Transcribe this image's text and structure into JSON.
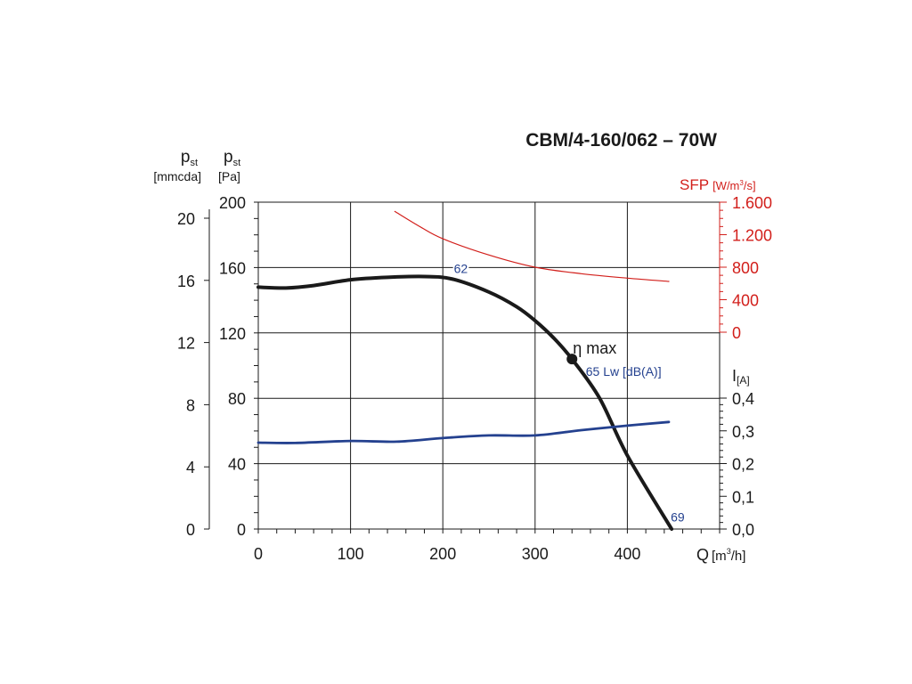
{
  "chart_data": {
    "type": "line",
    "title": "CBM/4-160/062 – 70W",
    "xlabel": "Q [m³/h]",
    "xlabel_main": "Q",
    "xlabel_unit": "[m",
    "xlabel_sup": "3",
    "xlabel_unit_end": "/h]",
    "xlim": [
      0,
      500
    ],
    "xticks": [
      0,
      100,
      200,
      300,
      400
    ],
    "y_left": {
      "label_main": "p",
      "label_sub": "st",
      "unit": "[Pa]",
      "ylim": [
        0,
        200
      ],
      "ticks": [
        0,
        40,
        80,
        120,
        160,
        200
      ]
    },
    "y_left2": {
      "label_main": "p",
      "label_sub": "st",
      "unit": "[mmcda]",
      "ylim": [
        0,
        20.4
      ],
      "ticks": [
        0,
        4,
        8,
        12,
        16,
        20
      ]
    },
    "y_right_sfp": {
      "label": "SFP",
      "unit": "[W/m",
      "unit_sup": "3",
      "unit_end": "/s]",
      "ylim": [
        0,
        1600
      ],
      "ticks": [
        "0",
        "400",
        "800",
        "1.200",
        "1.600"
      ],
      "tick_values": [
        0,
        400,
        800,
        1200,
        1600
      ],
      "color": "#d21f1b"
    },
    "y_right_current": {
      "label_main": "I",
      "label_sub": "[A]",
      "ylim": [
        0,
        0.4
      ],
      "ticks": [
        "0,0",
        "0,1",
        "0,2",
        "0,3",
        "0,4"
      ],
      "tick_values": [
        0,
        0.1,
        0.2,
        0.3,
        0.4
      ]
    },
    "series": [
      {
        "name": "pressure",
        "axis": "pa",
        "color": "#1a1a1a",
        "x": [
          0,
          30,
          60,
          100,
          140,
          180,
          210,
          250,
          280,
          300,
          320,
          340,
          370,
          400,
          448
        ],
        "y": [
          148,
          147.5,
          149,
          152.5,
          154,
          154.5,
          153,
          145,
          136,
          127.5,
          117,
          104,
          80,
          45,
          0
        ]
      },
      {
        "name": "SFP",
        "axis": "sfp",
        "color": "#d21f1b",
        "x": [
          148,
          175,
          200,
          250,
          300,
          350,
          400,
          445
        ],
        "y": [
          1486,
          1300,
          1150,
          950,
          800,
          720,
          665,
          625
        ]
      },
      {
        "name": "current",
        "axis": "a",
        "color": "#24418f",
        "x": [
          0,
          40,
          100,
          150,
          200,
          250,
          300,
          350,
          400,
          445
        ],
        "y": [
          0.264,
          0.263,
          0.269,
          0.267,
          0.278,
          0.286,
          0.286,
          0.302,
          0.316,
          0.327
        ]
      }
    ],
    "annotations": [
      {
        "text": "62",
        "x": 212,
        "y": 160,
        "color": "#24418f"
      },
      {
        "text": "65 Lw [dB(A)]",
        "x": 355,
        "y": 97,
        "color": "#24418f"
      },
      {
        "text": "69",
        "x": 447,
        "y": 8,
        "color": "#24418f"
      },
      {
        "text": "η max",
        "x": 340,
        "y": 104,
        "color": "#1a1a1a"
      }
    ],
    "marker": {
      "x": 340,
      "y": 104
    },
    "grid": true
  }
}
